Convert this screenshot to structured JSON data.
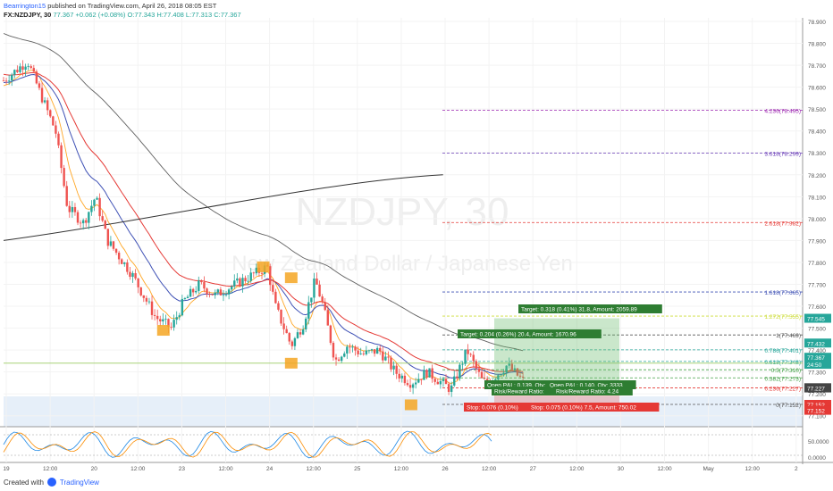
{
  "header": {
    "author": "Bearrington15",
    "published": "published on TradingView.com, April 26, 2018 08:05 EST",
    "symbol_line": "FX:NZDJPY, 30",
    "last": "77.367",
    "change": "+0.062 (+0.08%)",
    "ohlc": "O:77.343 H:77.408 L:77.313 C:77.367"
  },
  "footer": {
    "created_with": "Created with",
    "brand": "TradingView"
  },
  "watermark": {
    "symbol": "NZDJPY, 30",
    "name": "New Zealand Dollar / Japanese Yen"
  },
  "colors": {
    "up": "#26a69a",
    "down": "#ef5350",
    "ma_blue": "#3f51b5",
    "ma_red": "#e53935",
    "ma_orange": "#ffa726",
    "ma_gray": "#616161",
    "ma_black": "#333333",
    "marker": "#f5a623",
    "green_box": "#66bb6a",
    "red_box": "#e53935"
  },
  "chart_data": {
    "type": "candlestick",
    "symbol": "FX:NZDJPY, 30",
    "ylim": [
      77.05,
      78.8
    ],
    "x_ticks": [
      "19",
      "12:00",
      "20",
      "12:00",
      "23",
      "12:00",
      "24",
      "12:00",
      "25",
      "12:00",
      "26",
      "12:00",
      "27",
      "12:00",
      "30",
      "12:00",
      "May",
      "12:00",
      "2"
    ],
    "y_ticks": [
      "78.900",
      "78.800",
      "78.700",
      "78.600",
      "78.500",
      "78.400",
      "78.300",
      "78.200",
      "78.100",
      "78.000",
      "77.900",
      "77.800",
      "77.700",
      "77.600",
      "77.500",
      "77.400",
      "77.300",
      "77.200",
      "77.100"
    ],
    "price_path": [
      [
        0,
        78.63
      ],
      [
        0.03,
        78.72
      ],
      [
        0.045,
        78.58
      ],
      [
        0.065,
        78.4
      ],
      [
        0.08,
        78.05
      ],
      [
        0.1,
        77.98
      ],
      [
        0.115,
        78.1
      ],
      [
        0.13,
        77.9
      ],
      [
        0.16,
        77.75
      ],
      [
        0.19,
        77.55
      ],
      [
        0.21,
        77.5
      ],
      [
        0.225,
        77.62
      ],
      [
        0.245,
        77.7
      ],
      [
        0.265,
        77.65
      ],
      [
        0.3,
        77.72
      ],
      [
        0.33,
        77.78
      ],
      [
        0.34,
        77.6
      ],
      [
        0.36,
        77.42
      ],
      [
        0.375,
        77.52
      ],
      [
        0.39,
        77.72
      ],
      [
        0.4,
        77.6
      ],
      [
        0.415,
        77.35
      ],
      [
        0.43,
        77.42
      ],
      [
        0.45,
        77.38
      ],
      [
        0.47,
        77.4
      ],
      [
        0.49,
        77.3
      ],
      [
        0.51,
        77.25
      ],
      [
        0.53,
        77.3
      ],
      [
        0.545,
        77.26
      ],
      [
        0.56,
        77.22
      ],
      [
        0.58,
        77.4
      ],
      [
        0.6,
        77.25
      ],
      [
        0.615,
        77.28
      ],
      [
        0.63,
        77.33
      ],
      [
        0.65,
        77.26
      ]
    ],
    "fib_levels": [
      {
        "label": "0(77.152)",
        "price": 77.152
      },
      {
        "label": "0.236(77.227)",
        "price": 77.227
      },
      {
        "label": "0.382(77.273)",
        "price": 77.273
      },
      {
        "label": "0.5(77.310)",
        "price": 77.31
      },
      {
        "label": "0.618(77.348)",
        "price": 77.348
      },
      {
        "label": "0.786(77.401)",
        "price": 77.401
      },
      {
        "label": "1(77.469)",
        "price": 77.469
      },
      {
        "label": "1.272(77.555)",
        "price": 77.555
      },
      {
        "label": "1.618(77.665)",
        "price": 77.665
      },
      {
        "label": "2.618(77.982)",
        "price": 77.982
      },
      {
        "label": "3.618(78.299)",
        "price": 78.299
      },
      {
        "label": "4.236(78.495)",
        "price": 78.495
      }
    ],
    "price_tags": [
      {
        "label": "77.545",
        "price": 77.545,
        "color": "#26a69a"
      },
      {
        "label": "77.432",
        "price": 77.432,
        "color": "#26a69a"
      },
      {
        "label": "77.367",
        "price": 77.367,
        "color": "#26a69a"
      },
      {
        "label": "24:50",
        "price": 77.335,
        "color": "#26a69a"
      },
      {
        "label": "77.228",
        "price": 77.228,
        "color": "#444444"
      },
      {
        "label": "77.227",
        "price": 77.227,
        "color": "#444444"
      },
      {
        "label": "77.152",
        "price": 77.152,
        "color": "#e53935"
      },
      {
        "label": "77.152",
        "price": 77.125,
        "color": "#e53935"
      }
    ],
    "annotations": [
      "Target: 0.318 (0.41%) 31.8, Amount: 2059.89",
      "Target: 0.204 (0.26%) 20.4, Amount: 1670.96",
      "Open P&L: 0.139, Qty:",
      "Risk/Reward Ratio:",
      "Open P&L: 0.140, Qty: 3333",
      "Risk/Reward Ratio: 4.24",
      "Stop: 0.076 (0.10%)",
      "Stop: 0.075 (0.10%) 7.5, Amount: 750.02"
    ],
    "osc_ticks": [
      "50.0000",
      "0.0000"
    ]
  }
}
